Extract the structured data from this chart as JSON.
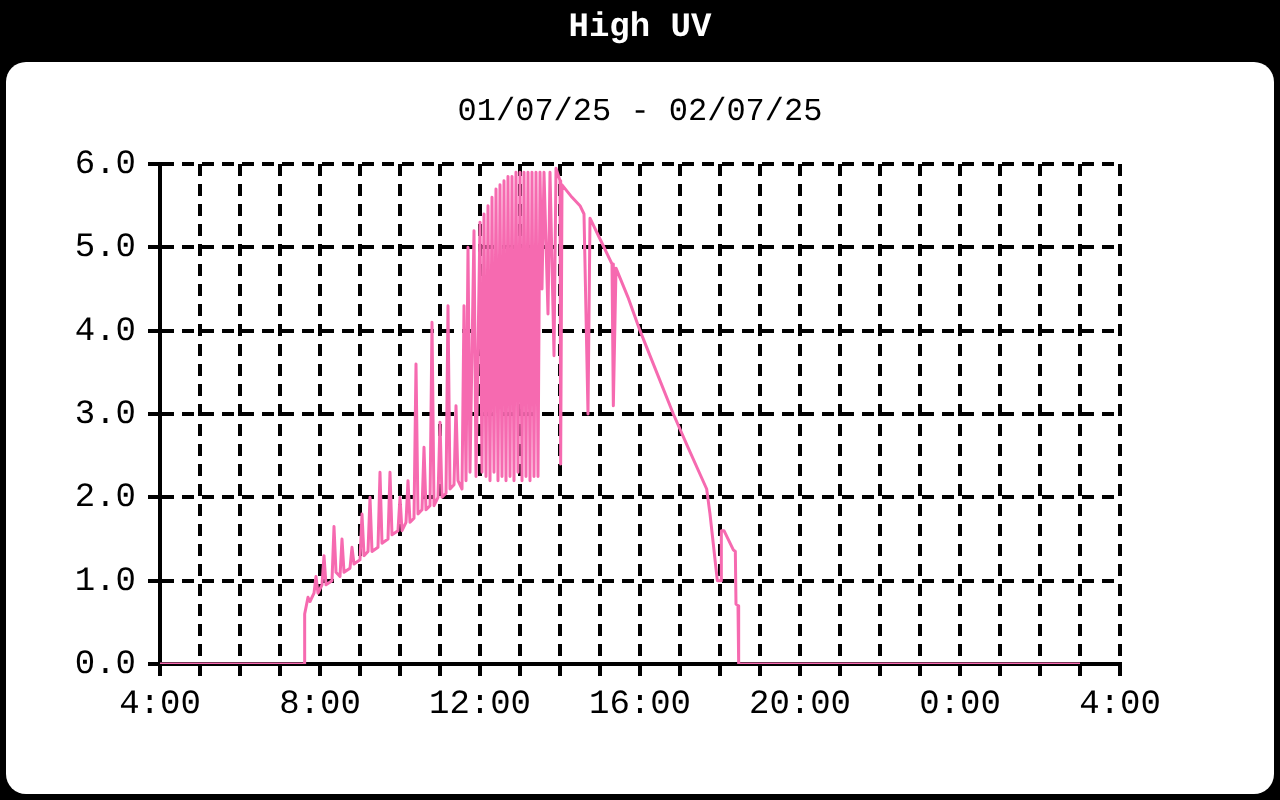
{
  "chart_data": {
    "type": "line",
    "title": "High UV",
    "subtitle": "01/07/25 - 02/07/25",
    "x": [
      "--07-01T04:00",
      "--07-01T07:36",
      "--07-01T07:37",
      "--07-01T07:42",
      "--07-01T07:45",
      "--07-01T07:51",
      "--07-01T07:54",
      "--07-01T07:57",
      "--07-01T08:03",
      "--07-01T08:06",
      "--07-01T08:09",
      "--07-01T08:18",
      "--07-01T08:21",
      "--07-01T08:24",
      "--07-01T08:30",
      "--07-01T08:33",
      "--07-01T08:36",
      "--07-01T08:45",
      "--07-01T08:48",
      "--07-01T08:51",
      "--07-01T09:00",
      "--07-01T09:03",
      "--07-01T09:06",
      "--07-01T09:12",
      "--07-01T09:15",
      "--07-01T09:18",
      "--07-01T09:27",
      "--07-01T09:30",
      "--07-01T09:33",
      "--07-01T09:42",
      "--07-01T09:45",
      "--07-01T09:48",
      "--07-01T09:57",
      "--07-01T10:00",
      "--07-01T10:03",
      "--07-01T10:09",
      "--07-01T10:12",
      "--07-01T10:15",
      "--07-01T10:21",
      "--07-01T10:24",
      "--07-01T10:27",
      "--07-01T10:33",
      "--07-01T10:36",
      "--07-01T10:39",
      "--07-01T10:45",
      "--07-01T10:48",
      "--07-01T10:51",
      "--07-01T10:57",
      "--07-01T11:00",
      "--07-01T11:03",
      "--07-01T11:09",
      "--07-01T11:12",
      "--07-01T11:15",
      "--07-01T11:21",
      "--07-01T11:24",
      "--07-01T11:27",
      "--07-01T11:33",
      "--07-01T11:36",
      "--07-01T11:39",
      "--07-01T11:42",
      "--07-01T11:45",
      "--07-01T11:51",
      "--07-01T11:54",
      "--07-01T12:00",
      "--07-01T12:03",
      "--07-01T12:06",
      "--07-01T12:09",
      "--07-01T12:12",
      "--07-01T12:15",
      "--07-01T12:18",
      "--07-01T12:21",
      "--07-01T12:24",
      "--07-01T12:27",
      "--07-01T12:30",
      "--07-01T12:33",
      "--07-01T12:36",
      "--07-01T12:39",
      "--07-01T12:42",
      "--07-01T12:45",
      "--07-01T12:48",
      "--07-01T12:51",
      "--07-01T12:54",
      "--07-01T12:57",
      "--07-01T13:00",
      "--07-01T13:03",
      "--07-01T13:06",
      "--07-01T13:09",
      "--07-01T13:12",
      "--07-01T13:15",
      "--07-01T13:18",
      "--07-01T13:21",
      "--07-01T13:24",
      "--07-01T13:27",
      "--07-01T13:30",
      "--07-01T13:33",
      "--07-01T13:36",
      "--07-01T13:42",
      "--07-01T13:45",
      "--07-01T13:51",
      "--07-01T13:54",
      "--07-01T14:00",
      "--07-01T14:01",
      "--07-01T14:03",
      "--07-01T14:18",
      "--07-01T14:30",
      "--07-01T14:36",
      "--07-01T14:42",
      "--07-01T14:45",
      "--07-01T15:00",
      "--07-01T15:18",
      "--07-01T15:20",
      "--07-01T15:24",
      "--07-01T15:42",
      "--07-01T16:00",
      "--07-01T16:30",
      "--07-01T16:50",
      "--07-01T17:12",
      "--07-01T17:40",
      "--07-01T17:45",
      "--07-01T17:56",
      "--07-01T18:00",
      "--07-01T18:02",
      "--07-01T18:06",
      "--07-01T18:20",
      "--07-01T18:23",
      "--07-01T18:24",
      "--07-01T18:27",
      "--07-01T18:28",
      "--07-02T03:00"
    ],
    "values": [
      0,
      0,
      0.6,
      0.8,
      0.75,
      0.85,
      1.05,
      0.85,
      0.95,
      1.3,
      0.95,
      1.0,
      1.65,
      1.1,
      1.05,
      1.5,
      1.1,
      1.15,
      1.4,
      1.2,
      1.25,
      1.8,
      1.3,
      1.35,
      2.0,
      1.35,
      1.4,
      2.3,
      1.45,
      1.5,
      2.3,
      1.55,
      1.6,
      2.0,
      1.6,
      1.7,
      2.2,
      1.7,
      1.75,
      3.6,
      1.8,
      1.85,
      2.6,
      1.85,
      1.9,
      4.1,
      1.9,
      2.0,
      2.9,
      2.0,
      2.05,
      4.3,
      2.1,
      2.15,
      3.1,
      2.2,
      2.1,
      4.3,
      2.2,
      5.0,
      2.3,
      5.2,
      2.25,
      5.3,
      2.3,
      5.4,
      2.25,
      5.5,
      2.2,
      5.6,
      2.3,
      5.7,
      2.2,
      5.75,
      2.25,
      5.8,
      2.2,
      5.85,
      2.25,
      5.85,
      2.2,
      5.9,
      2.3,
      5.9,
      2.2,
      5.9,
      2.25,
      5.9,
      2.2,
      5.9,
      2.25,
      5.9,
      2.25,
      5.9,
      4.5,
      5.9,
      4.2,
      5.9,
      3.7,
      5.95,
      5.8,
      2.4,
      5.75,
      5.6,
      5.5,
      5.4,
      3.0,
      5.35,
      5.1,
      4.8,
      3.1,
      4.75,
      4.4,
      4.0,
      3.4,
      3.0,
      2.6,
      2.1,
      1.8,
      1.0,
      1.0,
      1.6,
      1.6,
      1.37,
      1.35,
      0.72,
      0.7,
      0,
      0
    ],
    "color": "#f66ab0",
    "xlim": [
      "--07-01T04:00",
      "--07-02T04:00"
    ],
    "ylim": [
      0,
      6
    ],
    "xticks": [
      {
        "value": "--07-01T04:00",
        "label": "4:00"
      },
      {
        "value": "--07-01T05:00",
        "label": null
      },
      {
        "value": "--07-01T06:00",
        "label": null
      },
      {
        "value": "--07-01T07:00",
        "label": null
      },
      {
        "value": "--07-01T08:00",
        "label": "8:00"
      },
      {
        "value": "--07-01T09:00",
        "label": null
      },
      {
        "value": "--07-01T10:00",
        "label": null
      },
      {
        "value": "--07-01T11:00",
        "label": null
      },
      {
        "value": "--07-01T12:00",
        "label": "12:00"
      },
      {
        "value": "--07-01T13:00",
        "label": null
      },
      {
        "value": "--07-01T14:00",
        "label": null
      },
      {
        "value": "--07-01T15:00",
        "label": null
      },
      {
        "value": "--07-01T16:00",
        "label": "16:00"
      },
      {
        "value": "--07-01T17:00",
        "label": null
      },
      {
        "value": "--07-01T18:00",
        "label": null
      },
      {
        "value": "--07-01T19:00",
        "label": null
      },
      {
        "value": "--07-01T20:00",
        "label": "20:00"
      },
      {
        "value": "--07-01T21:00",
        "label": null
      },
      {
        "value": "--07-01T22:00",
        "label": null
      },
      {
        "value": "--07-01T23:00",
        "label": null
      },
      {
        "value": "--07-02T00:00",
        "label": "0:00"
      },
      {
        "value": "--07-02T01:00",
        "label": null
      },
      {
        "value": "--07-02T02:00",
        "label": null
      },
      {
        "value": "--07-02T03:00",
        "label": null
      },
      {
        "value": "--07-02T04:00",
        "label": "4:00"
      }
    ],
    "yticks": [
      {
        "value": 0,
        "label": "0.0"
      },
      {
        "value": 1,
        "label": "1.0"
      },
      {
        "value": 2,
        "label": "2.0"
      },
      {
        "value": 3,
        "label": "3.0"
      },
      {
        "value": 4,
        "label": "4.0"
      },
      {
        "value": 5,
        "label": "5.0"
      },
      {
        "value": 6,
        "label": "6.0"
      }
    ],
    "grid": true,
    "marker": "none",
    "line_style": "solid"
  }
}
